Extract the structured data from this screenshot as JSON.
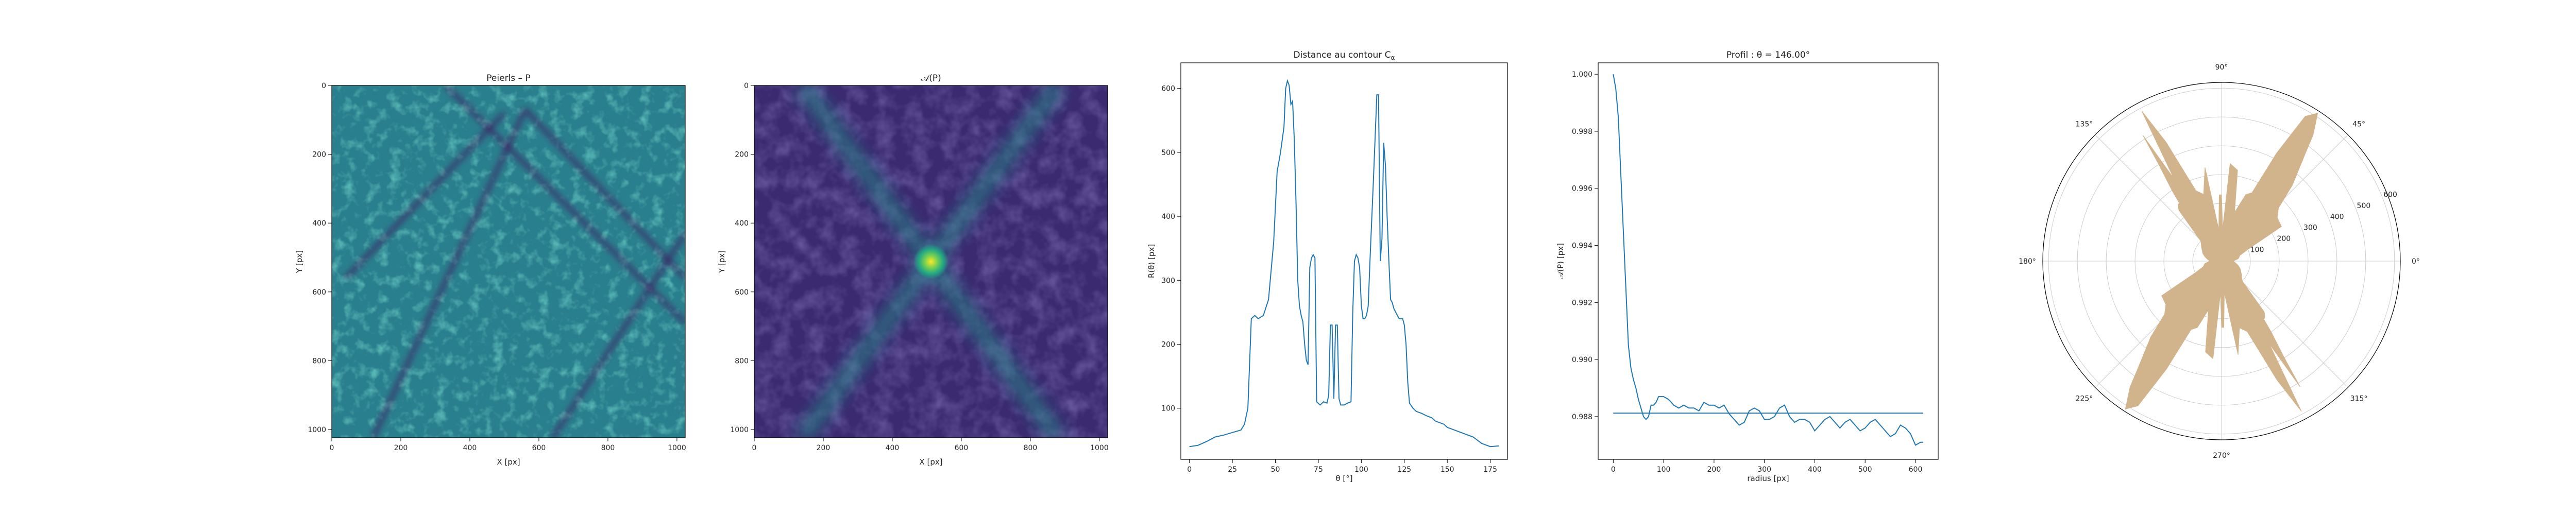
{
  "colors": {
    "line": "#1f77b4",
    "rose_fill": "#d2b48c",
    "viridis_low": "#440154",
    "viridis_mid": "#21918c",
    "viridis_high": "#fde725",
    "axes": "#000000",
    "grid": "#cccccc"
  },
  "chart_data": [
    {
      "type": "heatmap",
      "title": "Peierls – P",
      "xlabel": "X [px]",
      "ylabel": "Y [px]",
      "xlim": [
        0,
        1024
      ],
      "ylim": [
        1024,
        0
      ],
      "x_ticks": [
        0,
        200,
        400,
        600,
        800,
        1000
      ],
      "y_ticks": [
        0,
        200,
        400,
        600,
        800,
        1000
      ],
      "colormap": "viridis",
      "features": [
        {
          "kind": "dark-line",
          "from": [
            120,
            1024
          ],
          "to": [
            560,
            70
          ]
        },
        {
          "kind": "dark-line",
          "from": [
            330,
            0
          ],
          "to": [
            1024,
            690
          ]
        },
        {
          "kind": "dark-line",
          "from": [
            560,
            70
          ],
          "to": [
            1024,
            560
          ]
        },
        {
          "kind": "dark-line",
          "from": [
            40,
            560
          ],
          "to": [
            500,
            80
          ]
        },
        {
          "kind": "dark-line",
          "from": [
            640,
            1024
          ],
          "to": [
            1024,
            430
          ]
        }
      ]
    },
    {
      "type": "heatmap",
      "title": "𝒜(P)",
      "xlabel": "X [px]",
      "ylabel": "Y [px]",
      "xlim": [
        0,
        1024
      ],
      "ylim": [
        1024,
        0
      ],
      "x_ticks": [
        0,
        200,
        400,
        600,
        800,
        1000
      ],
      "y_ticks": [
        0,
        200,
        400,
        600,
        800,
        1000
      ],
      "colormap": "viridis",
      "peak": [
        512,
        512
      ],
      "features": [
        {
          "kind": "bright-line",
          "from": [
            140,
            0
          ],
          "to": [
            880,
            1024
          ]
        },
        {
          "kind": "bright-line",
          "from": [
            880,
            0
          ],
          "to": [
            140,
            1024
          ]
        }
      ]
    },
    {
      "type": "line",
      "title": "Distance au contour C",
      "title_subscript": "α",
      "xlabel": "θ [°]",
      "ylabel": "R(θ) [px]",
      "xlim": [
        -5,
        185
      ],
      "ylim": [
        20,
        640
      ],
      "x_ticks": [
        0,
        25,
        50,
        75,
        100,
        125,
        150,
        175
      ],
      "y_ticks": [
        100,
        200,
        300,
        400,
        500,
        600
      ],
      "series": [
        {
          "x": [
            0,
            5,
            10,
            15,
            20,
            25,
            30,
            32,
            34,
            36,
            38,
            40,
            43,
            46,
            49,
            51,
            53,
            55,
            56,
            57,
            58,
            59,
            60,
            61,
            62,
            63,
            64,
            65,
            66,
            67,
            68,
            69,
            70,
            71,
            72,
            73,
            74,
            76,
            78,
            80,
            81,
            82,
            83,
            84,
            85,
            86,
            87,
            88,
            90,
            92,
            94,
            95,
            96,
            97,
            98,
            99,
            100,
            101,
            102,
            103,
            104,
            105,
            107,
            109,
            110,
            111,
            112,
            113,
            114,
            115,
            116,
            117,
            118,
            119,
            120,
            121,
            122,
            123,
            124,
            125,
            126,
            127,
            128,
            130,
            132,
            135,
            138,
            141,
            143,
            145,
            148,
            150,
            155,
            160,
            165,
            170,
            175,
            180
          ],
          "y": [
            40,
            42,
            48,
            55,
            58,
            62,
            66,
            75,
            100,
            240,
            245,
            240,
            245,
            270,
            360,
            470,
            500,
            540,
            600,
            612,
            605,
            575,
            580,
            520,
            420,
            300,
            260,
            245,
            235,
            200,
            175,
            168,
            320,
            335,
            340,
            335,
            110,
            105,
            110,
            108,
            120,
            230,
            230,
            115,
            230,
            230,
            115,
            105,
            105,
            108,
            110,
            250,
            330,
            340,
            335,
            320,
            260,
            240,
            240,
            245,
            260,
            330,
            455,
            590,
            590,
            330,
            365,
            515,
            480,
            400,
            330,
            270,
            265,
            255,
            250,
            245,
            240,
            240,
            240,
            230,
            200,
            140,
            108,
            100,
            95,
            92,
            88,
            85,
            80,
            78,
            75,
            70,
            65,
            60,
            55,
            45,
            40,
            41
          ]
        }
      ]
    },
    {
      "type": "line",
      "title": "Profil : θ = 146.00°",
      "xlabel": "radius [px]",
      "ylabel": "𝒜(P) [px]",
      "xlim": [
        -30,
        645
      ],
      "ylim": [
        0.9865,
        1.0004
      ],
      "x_ticks": [
        0,
        100,
        200,
        300,
        400,
        500,
        600
      ],
      "y_ticks": [
        0.988,
        0.99,
        0.992,
        0.994,
        0.996,
        0.998,
        1.0
      ],
      "series": [
        {
          "x": [
            0,
            5,
            10,
            15,
            20,
            25,
            30,
            35,
            40,
            45,
            50,
            55,
            60,
            65,
            70,
            75,
            80,
            85,
            90,
            95,
            100,
            110,
            120,
            130,
            140,
            150,
            160,
            170,
            180,
            190,
            200,
            210,
            220,
            230,
            240,
            250,
            260,
            270,
            280,
            290,
            300,
            310,
            320,
            330,
            340,
            350,
            360,
            370,
            380,
            390,
            400,
            410,
            420,
            430,
            440,
            450,
            460,
            470,
            480,
            490,
            500,
            510,
            520,
            530,
            540,
            550,
            560,
            570,
            580,
            590,
            600,
            610,
            615
          ],
          "y": [
            1.0,
            0.9995,
            0.9985,
            0.9965,
            0.9945,
            0.9925,
            0.9905,
            0.9897,
            0.9893,
            0.989,
            0.9886,
            0.9883,
            0.988,
            0.9879,
            0.988,
            0.9884,
            0.9884,
            0.9885,
            0.9887,
            0.9887,
            0.9887,
            0.9886,
            0.9884,
            0.9883,
            0.9884,
            0.9883,
            0.9883,
            0.9882,
            0.9885,
            0.9884,
            0.9884,
            0.9883,
            0.9884,
            0.9881,
            0.9879,
            0.9877,
            0.9878,
            0.9882,
            0.9883,
            0.9882,
            0.9879,
            0.9879,
            0.988,
            0.9883,
            0.9884,
            0.988,
            0.9878,
            0.9879,
            0.9879,
            0.9878,
            0.9875,
            0.9877,
            0.9879,
            0.988,
            0.9878,
            0.9876,
            0.9878,
            0.9879,
            0.9877,
            0.9875,
            0.9876,
            0.9878,
            0.9879,
            0.9877,
            0.9875,
            0.9873,
            0.9874,
            0.9877,
            0.9876,
            0.9874,
            0.987,
            0.9871,
            0.9871
          ]
        },
        {
          "x": [
            0,
            615
          ],
          "y": [
            0.98812,
            0.98812
          ]
        }
      ]
    },
    {
      "type": "polar-area",
      "r_ticks": [
        100,
        200,
        300,
        400,
        500,
        600
      ],
      "r_max": 620,
      "theta_ticks": [
        "0°",
        "45°",
        "90°",
        "135°",
        "180°",
        "225°",
        "270°",
        "315°"
      ],
      "theta_deg": [
        0,
        8,
        12,
        17,
        24,
        30,
        38,
        43,
        47,
        52,
        54,
        57,
        60,
        63,
        66,
        70,
        75,
        80,
        85,
        88,
        90,
        92,
        95,
        100,
        105,
        110,
        115,
        118,
        120,
        122,
        123,
        125,
        126,
        128,
        130,
        133,
        136,
        140,
        145,
        150,
        158,
        165,
        172,
        180
      ],
      "r": [
        40,
        58,
        62,
        66,
        100,
        240,
        245,
        270,
        360,
        470,
        540,
        612,
        580,
        420,
        260,
        245,
        175,
        320,
        340,
        110,
        230,
        230,
        110,
        330,
        240,
        260,
        455,
        590,
        330,
        515,
        400,
        300,
        250,
        245,
        230,
        140,
        100,
        92,
        85,
        78,
        70,
        60,
        50,
        40
      ]
    }
  ]
}
